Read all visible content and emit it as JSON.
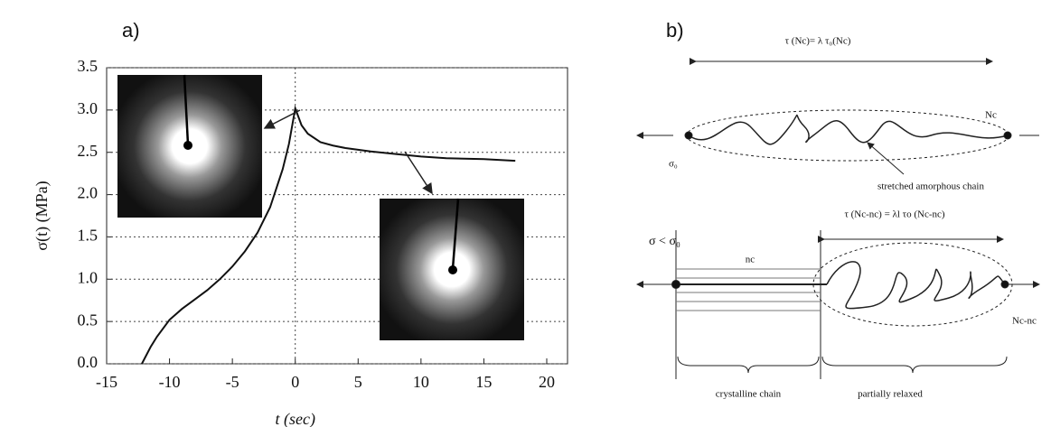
{
  "chart_data": {
    "type": "line",
    "panel_label": "a)",
    "y_label": "σ(t) (MPa)",
    "x_label": "t (sec)",
    "xlim": [
      -15,
      20
    ],
    "xticks": [
      -15,
      -10,
      -5,
      0,
      5,
      10,
      15,
      20
    ],
    "ylim": [
      0,
      3.5
    ],
    "yticks": [
      {
        "value": 0,
        "label": "0.0"
      },
      0.5,
      {
        "value": 1,
        "label": "1.0"
      },
      1.5,
      {
        "value": 2,
        "label": "2.0"
      },
      2.5,
      {
        "value": 3,
        "label": "3.0"
      },
      3.5
    ],
    "grid": true,
    "series": [
      {
        "color": "#111111",
        "x": [
          -12.2,
          -11.5,
          -11,
          -10,
          -9,
          -8,
          -7,
          -6,
          -5,
          -4,
          -3,
          -2,
          -1,
          -0.5,
          0,
          0.5,
          1,
          2,
          3,
          4,
          6,
          8,
          10,
          12,
          15,
          17.5
        ],
        "values": [
          0,
          0.2,
          0.32,
          0.52,
          0.65,
          0.76,
          0.87,
          1.0,
          1.15,
          1.33,
          1.55,
          1.85,
          2.3,
          2.6,
          3.02,
          2.82,
          2.72,
          2.62,
          2.58,
          2.55,
          2.51,
          2.48,
          2.45,
          2.43,
          2.42,
          2.4
        ]
      }
    ]
  },
  "diagram": {
    "panel_label": "b)",
    "top_tau": "τ (Nc)= λ τ₀(Nc)",
    "top_end": "Nc",
    "top_sigma": "σ₀",
    "top_chain": "stretched amorphous chain",
    "bottom_tau": "τ (Nc-nc) = λl τo (Nc-nc)",
    "bottom_sigma": "σ < σ₀",
    "bottom_nc": "nc",
    "bottom_end": "Nc-nc",
    "crystalline": "crystalline chain",
    "relaxed": "partially relaxed"
  }
}
